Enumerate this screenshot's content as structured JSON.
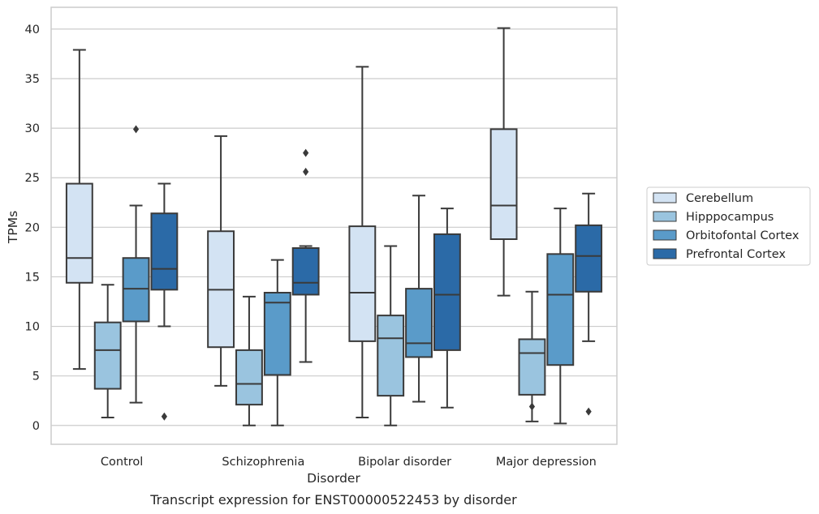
{
  "chart_data": {
    "type": "box",
    "caption": "Transcript expression for ENST00000522453 by disorder",
    "xlabel": "Disorder",
    "ylabel": "TPMs",
    "ylim": [
      -1.9,
      42.2
    ],
    "yticks": [
      0,
      5,
      10,
      15,
      20,
      25,
      30,
      35,
      40
    ],
    "grid": true,
    "legend_position": "right",
    "categories": [
      "Control",
      "Schizophrenia",
      "Bipolar disorder",
      "Major depression"
    ],
    "series": [
      {
        "name": "Cerebellum",
        "color": "#d3e3f3",
        "boxes": [
          {
            "whislo": 5.7,
            "q1": 14.4,
            "med": 16.9,
            "q3": 24.4,
            "whishi": 37.9,
            "fliers": []
          },
          {
            "whislo": 4.0,
            "q1": 7.9,
            "med": 13.7,
            "q3": 19.6,
            "whishi": 29.2,
            "fliers": []
          },
          {
            "whislo": 0.8,
            "q1": 8.5,
            "med": 13.4,
            "q3": 20.1,
            "whishi": 36.2,
            "fliers": []
          },
          {
            "whislo": 13.1,
            "q1": 18.8,
            "med": 22.2,
            "q3": 29.9,
            "whishi": 40.1,
            "fliers": []
          }
        ]
      },
      {
        "name": "Hipppocampus",
        "color": "#9ac4df",
        "boxes": [
          {
            "whislo": 0.8,
            "q1": 3.7,
            "med": 7.6,
            "q3": 10.4,
            "whishi": 14.2,
            "fliers": []
          },
          {
            "whislo": 0.0,
            "q1": 2.1,
            "med": 4.2,
            "q3": 7.6,
            "whishi": 13.0,
            "fliers": []
          },
          {
            "whislo": 0.0,
            "q1": 3.0,
            "med": 8.8,
            "q3": 11.1,
            "whishi": 18.1,
            "fliers": []
          },
          {
            "whislo": 0.4,
            "q1": 3.1,
            "med": 7.3,
            "q3": 8.7,
            "whishi": 13.5,
            "fliers": [
              1.9
            ]
          }
        ]
      },
      {
        "name": "Orbitofontal Cortex",
        "color": "#5a9bc9",
        "boxes": [
          {
            "whislo": 2.3,
            "q1": 10.5,
            "med": 13.8,
            "q3": 16.9,
            "whishi": 22.2,
            "fliers": [
              29.9
            ]
          },
          {
            "whislo": 0.0,
            "q1": 5.1,
            "med": 12.4,
            "q3": 13.4,
            "whishi": 16.7,
            "fliers": []
          },
          {
            "whislo": 2.4,
            "q1": 6.9,
            "med": 8.3,
            "q3": 13.8,
            "whishi": 23.2,
            "fliers": []
          },
          {
            "whislo": 0.2,
            "q1": 6.1,
            "med": 13.2,
            "q3": 17.3,
            "whishi": 21.9,
            "fliers": []
          }
        ]
      },
      {
        "name": "Prefrontal Cortex",
        "color": "#2b6aa7",
        "boxes": [
          {
            "whislo": 10.0,
            "q1": 13.7,
            "med": 15.8,
            "q3": 21.4,
            "whishi": 24.4,
            "fliers": [
              0.9
            ]
          },
          {
            "whislo": 6.4,
            "q1": 13.2,
            "med": 14.4,
            "q3": 17.9,
            "whishi": 18.1,
            "fliers": [
              25.6,
              27.5
            ]
          },
          {
            "whislo": 1.8,
            "q1": 7.6,
            "med": 13.2,
            "q3": 19.3,
            "whishi": 21.9,
            "fliers": []
          },
          {
            "whislo": 8.5,
            "q1": 13.5,
            "med": 17.1,
            "q3": 20.2,
            "whishi": 23.4,
            "fliers": [
              1.4
            ]
          }
        ]
      }
    ]
  }
}
